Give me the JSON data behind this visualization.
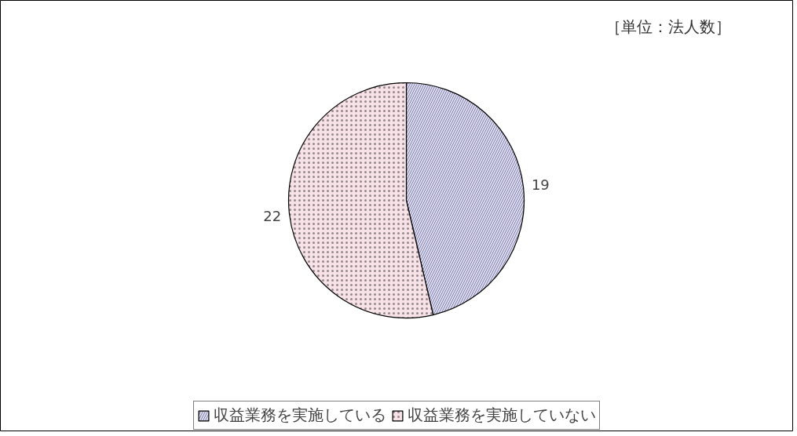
{
  "chart_data": {
    "type": "pie",
    "categories": [
      "収益業務を実施している",
      "収益業務を実施していない"
    ],
    "values": [
      19,
      22
    ],
    "colors": [
      "#dcdcfa",
      "#f7e2e8"
    ],
    "data_labels": true,
    "legend": "bottom",
    "annotations": [
      "［単位：法人数］"
    ]
  }
}
